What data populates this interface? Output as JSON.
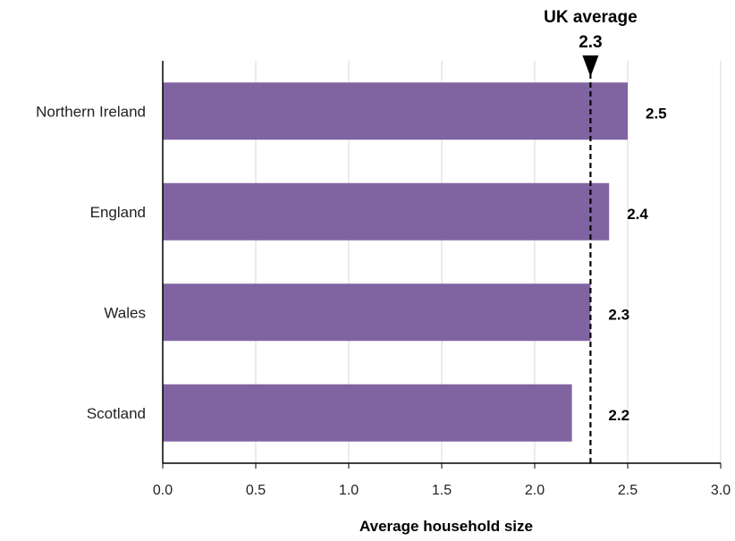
{
  "chart_data": {
    "type": "bar",
    "orientation": "horizontal",
    "categories": [
      "Northern Ireland",
      "England",
      "Wales",
      "Scotland"
    ],
    "values": [
      2.5,
      2.4,
      2.3,
      2.2
    ],
    "value_labels": [
      "2.5",
      "2.4",
      "2.3",
      "2.2"
    ],
    "xlabel": "Average household size",
    "xlim": [
      0,
      3.0
    ],
    "xticks": [
      0,
      0.5,
      1.0,
      1.5,
      2.0,
      2.5,
      3.0
    ],
    "xtick_labels": [
      "0.0",
      "0.5",
      "1.0",
      "1.5",
      "2.0",
      "2.5",
      "3.0"
    ],
    "grid": "vertical",
    "bar_color": "#8064a2",
    "reference_line": {
      "value": 2.3,
      "label": "UK average",
      "value_label": "2.3",
      "style": "dashed",
      "color": "#000000"
    }
  }
}
